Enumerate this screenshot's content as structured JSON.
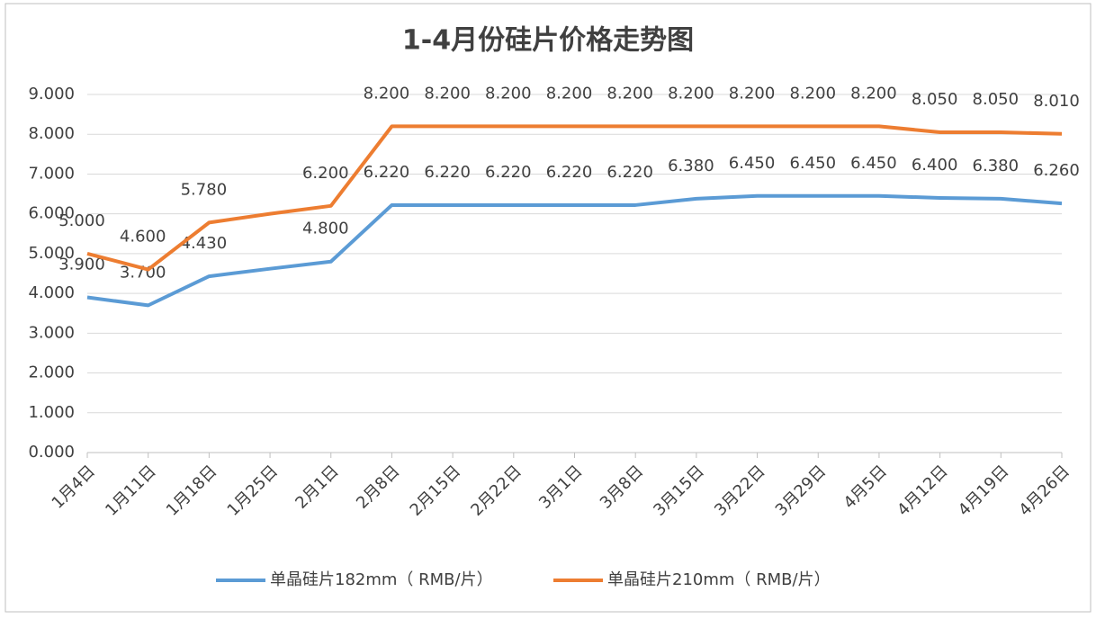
{
  "chart_data": {
    "type": "line",
    "title": "1-4月份硅片价格走势图",
    "categories": [
      "1月4日",
      "1月11日",
      "1月18日",
      "1月25日",
      "2月1日",
      "2月8日",
      "2月15日",
      "2月22日",
      "3月1日",
      "3月8日",
      "3月15日",
      "3月22日",
      "3月29日",
      "4月5日",
      "4月12日",
      "4月19日",
      "4月26日"
    ],
    "series": [
      {
        "name": "单晶硅片182mm（ RMB/片）",
        "color": "#5b9bd5",
        "values": [
          3.9,
          3.7,
          4.43,
          4.62,
          4.8,
          6.22,
          6.22,
          6.22,
          6.22,
          6.22,
          6.38,
          6.45,
          6.45,
          6.45,
          6.4,
          6.38,
          6.26
        ],
        "value_labels": [
          "3.900",
          "3.700",
          "4.430",
          null,
          "4.800",
          "6.220",
          "6.220",
          "6.220",
          "6.220",
          "6.220",
          "6.380",
          "6.450",
          "6.450",
          "6.450",
          "6.400",
          "6.380",
          "6.260"
        ]
      },
      {
        "name": "单晶硅片210mm（ RMB/片）",
        "color": "#ed7d31",
        "values": [
          5.0,
          4.6,
          5.78,
          6.0,
          6.2,
          8.2,
          8.2,
          8.2,
          8.2,
          8.2,
          8.2,
          8.2,
          8.2,
          8.2,
          8.05,
          8.05,
          8.01
        ],
        "value_labels": [
          "5.000",
          "4.600",
          "5.780",
          null,
          "6.200",
          "8.200",
          "8.200",
          "8.200",
          "8.200",
          "8.200",
          "8.200",
          "8.200",
          "8.200",
          "8.200",
          "8.050",
          "8.050",
          "8.010"
        ]
      }
    ],
    "ylim": [
      0,
      9
    ],
    "yticks": [
      {
        "value": 0,
        "label": "0.000"
      },
      {
        "value": 1,
        "label": "1.000"
      },
      {
        "value": 2,
        "label": "2.000"
      },
      {
        "value": 3,
        "label": "3.000"
      },
      {
        "value": 4,
        "label": "4.000"
      },
      {
        "value": 5,
        "label": "5.000"
      },
      {
        "value": 6,
        "label": "6.000"
      },
      {
        "value": 7,
        "label": "7.000"
      },
      {
        "value": 8,
        "label": "8.000"
      },
      {
        "value": 9,
        "label": "9.000"
      }
    ],
    "grid": true
  }
}
